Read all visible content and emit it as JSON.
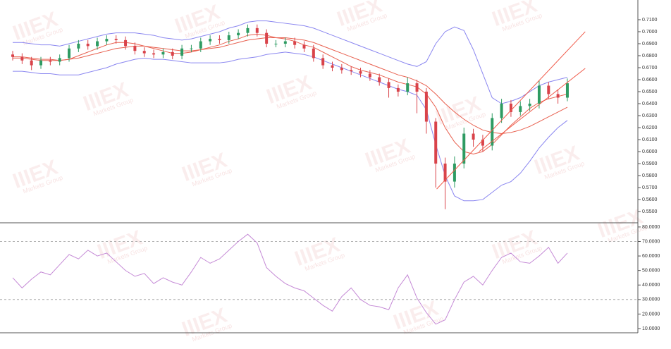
{
  "chart_data": [
    {
      "type": "candlestick",
      "watermark": "IIIEX",
      "watermark_sub": "Markets Group",
      "up_color": "#2e9b62",
      "down_color": "#d9434a",
      "xlim": [
        -1.35,
        66.5
      ],
      "ylim": [
        0.5424,
        0.7235
      ],
      "yticks": [
        {
          "value": 0.55,
          "label": "0.5500"
        },
        {
          "value": 0.56,
          "label": "0.5600"
        },
        {
          "value": 0.57,
          "label": "0.5700"
        },
        {
          "value": 0.58,
          "label": "0.5800"
        },
        {
          "value": 0.59,
          "label": "0.5900"
        },
        {
          "value": 0.6,
          "label": "0.6000"
        },
        {
          "value": 0.61,
          "label": "0.6100"
        },
        {
          "value": 0.62,
          "label": "0.6200"
        },
        {
          "value": 0.63,
          "label": "0.6300"
        },
        {
          "value": 0.64,
          "label": "0.6400"
        },
        {
          "value": 0.65,
          "label": "0.6500"
        },
        {
          "value": 0.66,
          "label": "0.6600"
        },
        {
          "value": 0.67,
          "label": "0.6700"
        },
        {
          "value": 0.68,
          "label": "0.6800"
        },
        {
          "value": 0.69,
          "label": "0.6900"
        },
        {
          "value": 0.7,
          "label": "0.7000"
        },
        {
          "value": 0.71,
          "label": "0.7100"
        }
      ],
      "open": [
        0.681,
        0.679,
        0.676,
        0.672,
        0.676,
        0.675,
        0.678,
        0.686,
        0.69,
        0.688,
        0.692,
        0.694,
        0.693,
        0.688,
        0.684,
        0.682,
        0.681,
        0.683,
        0.68,
        0.686,
        0.686,
        0.692,
        0.694,
        0.693,
        0.697,
        0.699,
        0.703,
        0.699,
        0.69,
        0.69,
        0.692,
        0.689,
        0.686,
        0.678,
        0.672,
        0.67,
        0.668,
        0.667,
        0.665,
        0.662,
        0.658,
        0.653,
        0.65,
        0.657,
        0.65,
        0.625,
        0.59,
        0.575,
        0.59,
        0.615,
        0.61,
        0.605,
        0.628,
        0.64,
        0.633,
        0.638,
        0.64,
        0.655,
        0.648,
        0.645
      ],
      "high": [
        0.684,
        0.682,
        0.679,
        0.679,
        0.679,
        0.681,
        0.689,
        0.693,
        0.693,
        0.695,
        0.697,
        0.697,
        0.696,
        0.691,
        0.687,
        0.685,
        0.686,
        0.686,
        0.689,
        0.689,
        0.695,
        0.697,
        0.697,
        0.7,
        0.702,
        0.706,
        0.706,
        0.702,
        0.693,
        0.695,
        0.695,
        0.692,
        0.689,
        0.681,
        0.675,
        0.673,
        0.671,
        0.67,
        0.668,
        0.665,
        0.661,
        0.656,
        0.662,
        0.66,
        0.653,
        0.628,
        0.595,
        0.596,
        0.62,
        0.619,
        0.614,
        0.632,
        0.644,
        0.643,
        0.642,
        0.644,
        0.659,
        0.658,
        0.652,
        0.661
      ],
      "low": [
        0.676,
        0.673,
        0.668,
        0.669,
        0.672,
        0.672,
        0.675,
        0.683,
        0.685,
        0.685,
        0.689,
        0.69,
        0.685,
        0.681,
        0.679,
        0.678,
        0.678,
        0.677,
        0.677,
        0.683,
        0.683,
        0.689,
        0.69,
        0.69,
        0.694,
        0.696,
        0.696,
        0.687,
        0.687,
        0.687,
        0.686,
        0.683,
        0.675,
        0.669,
        0.667,
        0.665,
        0.664,
        0.662,
        0.659,
        0.655,
        0.645,
        0.646,
        0.647,
        0.632,
        0.615,
        0.57,
        0.552,
        0.57,
        0.586,
        0.604,
        0.6,
        0.601,
        0.624,
        0.629,
        0.63,
        0.634,
        0.636,
        0.644,
        0.64,
        0.642
      ],
      "close": [
        0.679,
        0.676,
        0.672,
        0.676,
        0.675,
        0.678,
        0.686,
        0.69,
        0.688,
        0.692,
        0.694,
        0.693,
        0.688,
        0.684,
        0.682,
        0.681,
        0.683,
        0.68,
        0.686,
        0.686,
        0.692,
        0.694,
        0.693,
        0.697,
        0.699,
        0.703,
        0.699,
        0.69,
        0.69,
        0.692,
        0.689,
        0.686,
        0.678,
        0.672,
        0.67,
        0.668,
        0.667,
        0.665,
        0.662,
        0.658,
        0.653,
        0.65,
        0.657,
        0.65,
        0.625,
        0.59,
        0.575,
        0.59,
        0.615,
        0.61,
        0.605,
        0.628,
        0.64,
        0.633,
        0.638,
        0.64,
        0.655,
        0.648,
        0.645,
        0.657
      ],
      "overlays": [
        {
          "color": "#e8604f",
          "values": [
            0.678,
            0.678,
            0.677,
            0.676,
            0.676,
            0.676,
            0.677,
            0.68,
            0.683,
            0.686,
            0.689,
            0.691,
            0.691,
            0.69,
            0.688,
            0.686,
            0.684,
            0.682,
            0.682,
            0.683,
            0.685,
            0.687,
            0.689,
            0.692,
            0.694,
            0.697,
            0.698,
            0.697,
            0.695,
            0.694,
            0.692,
            0.689,
            0.687,
            0.683,
            0.679,
            0.675,
            0.671,
            0.668,
            0.666,
            0.664,
            0.661,
            0.658,
            0.656,
            0.654,
            0.648,
            0.637,
            0.62,
            0.608,
            0.6,
            0.598,
            0.6,
            0.606,
            0.614,
            0.622,
            0.629,
            0.636,
            0.641,
            0.644,
            0.646,
            0.648
          ]
        },
        {
          "color": "#e8604f",
          "values": [
            0.679,
            0.679,
            0.678,
            0.677,
            0.677,
            0.676,
            0.677,
            0.678,
            0.68,
            0.682,
            0.684,
            0.686,
            0.687,
            0.688,
            0.688,
            0.687,
            0.686,
            0.685,
            0.684,
            0.684,
            0.685,
            0.686,
            0.687,
            0.689,
            0.691,
            0.693,
            0.694,
            0.695,
            0.695,
            0.695,
            0.694,
            0.693,
            0.691,
            0.688,
            0.685,
            0.682,
            0.679,
            0.676,
            0.673,
            0.67,
            0.667,
            0.664,
            0.662,
            0.659,
            0.655,
            0.648,
            0.64,
            0.633,
            0.627,
            0.622,
            0.618,
            0.616,
            0.615,
            0.616,
            0.618,
            0.621,
            0.625,
            0.629,
            0.633,
            0.637
          ]
        },
        {
          "color": "#8a86f0",
          "values": [
            0.691,
            0.691,
            0.69,
            0.689,
            0.689,
            0.688,
            0.69,
            0.692,
            0.694,
            0.696,
            0.698,
            0.699,
            0.699,
            0.699,
            0.698,
            0.697,
            0.695,
            0.694,
            0.693,
            0.694,
            0.696,
            0.698,
            0.7,
            0.703,
            0.705,
            0.708,
            0.709,
            0.709,
            0.708,
            0.707,
            0.706,
            0.705,
            0.703,
            0.7,
            0.697,
            0.694,
            0.691,
            0.688,
            0.685,
            0.682,
            0.679,
            0.676,
            0.673,
            0.671,
            0.675,
            0.69,
            0.7,
            0.704,
            0.701,
            0.685,
            0.665,
            0.645,
            0.64,
            0.642,
            0.645,
            0.65,
            0.655,
            0.658,
            0.66,
            0.662
          ]
        },
        {
          "color": "#8a86f0",
          "values": [
            0.667,
            0.667,
            0.666,
            0.665,
            0.665,
            0.664,
            0.664,
            0.664,
            0.666,
            0.668,
            0.67,
            0.673,
            0.675,
            0.677,
            0.678,
            0.677,
            0.677,
            0.676,
            0.675,
            0.674,
            0.674,
            0.674,
            0.674,
            0.675,
            0.677,
            0.678,
            0.679,
            0.681,
            0.682,
            0.683,
            0.682,
            0.681,
            0.679,
            0.676,
            0.673,
            0.67,
            0.667,
            0.664,
            0.661,
            0.658,
            0.655,
            0.652,
            0.65,
            0.647,
            0.635,
            0.606,
            0.58,
            0.563,
            0.559,
            0.559,
            0.56,
            0.566,
            0.572,
            0.575,
            0.582,
            0.592,
            0.603,
            0.612,
            0.62,
            0.626
          ]
        }
      ],
      "trendlines": [
        {
          "color": "#f05a4a",
          "x": [
            45.1,
            60.9
          ],
          "y": [
            0.5688,
            0.7
          ]
        },
        {
          "color": "#f05a4a",
          "x": [
            49.6,
            60.9
          ],
          "y": [
            0.6,
            0.6694
          ]
        }
      ]
    },
    {
      "type": "line",
      "color": "#c58ad6",
      "xlim": [
        -1.35,
        66.5
      ],
      "ylim": [
        7.08,
        81.9
      ],
      "levels": [
        70,
        30
      ],
      "yticks": [
        {
          "value": 10,
          "label": "10.0000"
        },
        {
          "value": 20,
          "label": "20.0000"
        },
        {
          "value": 30,
          "label": "30.0000"
        },
        {
          "value": 40,
          "label": "40.0000"
        },
        {
          "value": 50,
          "label": "50.0000"
        },
        {
          "value": 60,
          "label": "60.0000"
        },
        {
          "value": 70,
          "label": "70.0000"
        },
        {
          "value": 80,
          "label": "80.0000"
        }
      ],
      "values": [
        45,
        38,
        44,
        49,
        47,
        54,
        61,
        58,
        64,
        60,
        62,
        56,
        50,
        46,
        48,
        41,
        45,
        42,
        40,
        49,
        59,
        55,
        58,
        64,
        70,
        75,
        69,
        52,
        46,
        41,
        38,
        36,
        31,
        26,
        22,
        32,
        38,
        30,
        26,
        25,
        23,
        38,
        47,
        31,
        21,
        13,
        16,
        30,
        42,
        46,
        40,
        50,
        59,
        62,
        56,
        55,
        60,
        66,
        55,
        62
      ]
    }
  ]
}
